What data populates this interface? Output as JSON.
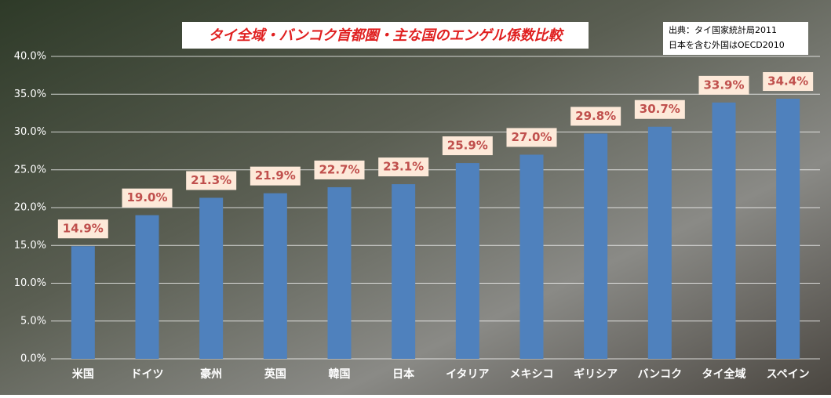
{
  "chart_data": {
    "type": "bar",
    "title": "タイ全域・バンコク首都圏・主な国のエンゲル係数比較",
    "annotations": [
      "出典：タイ国家統計局2011",
      "日本を含む外国はOECD2010"
    ],
    "categories": [
      "米国",
      "ドイツ",
      "豪州",
      "英国",
      "韓国",
      "日本",
      "イタリア",
      "メキシコ",
      "ギリシア",
      "バンコク",
      "タイ全域",
      "スペイン"
    ],
    "values": [
      14.9,
      19.0,
      21.3,
      21.9,
      22.7,
      23.1,
      25.9,
      27.0,
      29.8,
      30.7,
      33.9,
      34.4
    ],
    "value_labels": [
      "14.9%",
      "19.0%",
      "21.3%",
      "21.9%",
      "22.7%",
      "23.1%",
      "25.9%",
      "27.0%",
      "29.8%",
      "30.7%",
      "33.9%",
      "34.4%"
    ],
    "color": "#4f81bd",
    "ylim": [
      0,
      40
    ],
    "yticks": [
      {
        "value": 0,
        "label": "0.0%"
      },
      {
        "value": 5,
        "label": "5.0%"
      },
      {
        "value": 10,
        "label": "10.0%"
      },
      {
        "value": 15,
        "label": "15.0%"
      },
      {
        "value": 20,
        "label": "20.0%"
      },
      {
        "value": 25,
        "label": "25.0%"
      },
      {
        "value": 30,
        "label": "30.0%"
      },
      {
        "value": 35,
        "label": "35.0%"
      },
      {
        "value": 40,
        "label": "40.0%"
      }
    ],
    "grid": true
  }
}
